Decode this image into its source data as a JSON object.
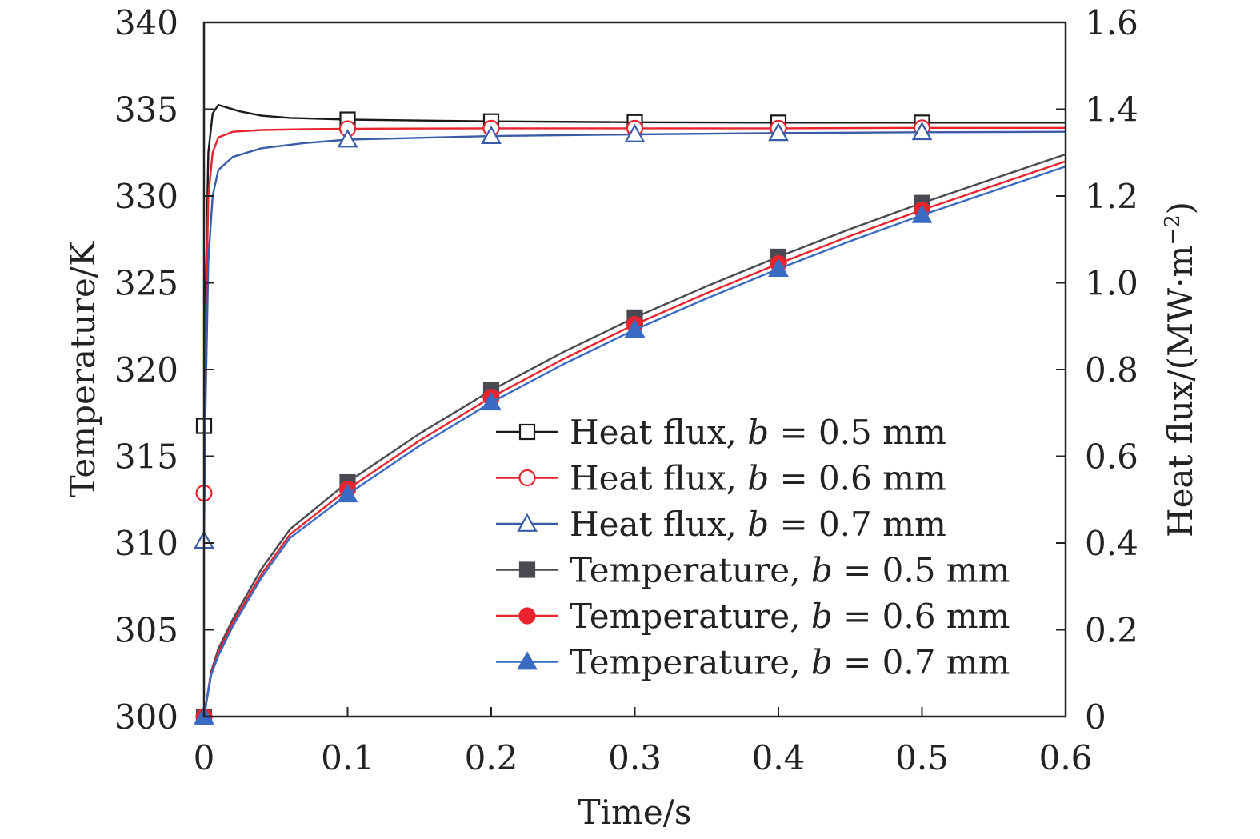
{
  "chart_data": {
    "type": "line",
    "title": "",
    "xlabel": "Time/s",
    "ylabel_left": "Temperature/K",
    "ylabel_right_main": "Heat flux/(MW·m",
    "ylabel_right_sup": "−2",
    "ylabel_right_close": ")",
    "xlim": [
      0,
      0.6
    ],
    "ylim_left": [
      300,
      340
    ],
    "ylim_right": [
      0,
      1.6
    ],
    "x_ticks": [
      0,
      0.1,
      0.2,
      0.3,
      0.4,
      0.5,
      0.6
    ],
    "x_tick_labels": [
      "0",
      "0.1",
      "0.2",
      "0.3",
      "0.4",
      "0.5",
      "0.6"
    ],
    "y_left_ticks": [
      300,
      305,
      310,
      315,
      320,
      325,
      330,
      335,
      340
    ],
    "y_left_tick_labels": [
      "300",
      "305",
      "310",
      "315",
      "320",
      "325",
      "330",
      "335",
      "340"
    ],
    "y_right_ticks": [
      0,
      0.2,
      0.4,
      0.6,
      0.8,
      1.0,
      1.2,
      1.4,
      1.6
    ],
    "y_right_tick_labels": [
      "0",
      "0.2",
      "0.4",
      "0.6",
      "0.8",
      "1.0",
      "1.2",
      "1.4",
      "1.6"
    ],
    "grid": false,
    "legend_position": "lower-right",
    "series": [
      {
        "name": "Heat flux, b = 0.5 mm",
        "legend_prefix": "Heat flux, ",
        "legend_var": "b",
        "legend_suffix": " = 0.5 mm",
        "axis": "right",
        "color": "#1a1a1a",
        "marker": "square-open",
        "x": [
          0,
          0.001,
          0.003,
          0.006,
          0.01,
          0.015,
          0.025,
          0.04,
          0.06,
          0.1,
          0.2,
          0.3,
          0.4,
          0.5,
          0.6
        ],
        "values": [
          0.67,
          0.95,
          1.3,
          1.39,
          1.41,
          1.405,
          1.395,
          1.385,
          1.38,
          1.376,
          1.372,
          1.37,
          1.369,
          1.369,
          1.369
        ],
        "marker_x": [
          0,
          0.1,
          0.2,
          0.3,
          0.4,
          0.5
        ]
      },
      {
        "name": "Heat flux, b = 0.6 mm",
        "legend_prefix": "Heat flux, ",
        "legend_var": "b",
        "legend_suffix": " = 0.6 mm",
        "axis": "right",
        "color": "#e8242e",
        "marker": "circle-open",
        "x": [
          0,
          0.001,
          0.003,
          0.006,
          0.01,
          0.02,
          0.04,
          0.07,
          0.1,
          0.2,
          0.3,
          0.4,
          0.5,
          0.6
        ],
        "values": [
          0.515,
          0.85,
          1.2,
          1.3,
          1.335,
          1.348,
          1.352,
          1.354,
          1.355,
          1.356,
          1.356,
          1.356,
          1.357,
          1.357
        ],
        "marker_x": [
          0,
          0.1,
          0.2,
          0.3,
          0.4,
          0.5
        ]
      },
      {
        "name": "Heat flux, b = 0.7 mm",
        "legend_prefix": "Heat flux, ",
        "legend_var": "b",
        "legend_suffix": " = 0.7 mm",
        "axis": "right",
        "color": "#3a5ca8",
        "marker": "triangle-open",
        "x": [
          0,
          0.001,
          0.003,
          0.006,
          0.01,
          0.02,
          0.04,
          0.07,
          0.1,
          0.2,
          0.3,
          0.4,
          0.5,
          0.6
        ],
        "values": [
          0.405,
          0.7,
          1.05,
          1.2,
          1.26,
          1.29,
          1.31,
          1.322,
          1.33,
          1.338,
          1.342,
          1.345,
          1.347,
          1.348
        ],
        "marker_x": [
          0,
          0.1,
          0.2,
          0.3,
          0.4,
          0.5
        ]
      },
      {
        "name": "Temperature, b = 0.5 mm",
        "legend_prefix": "Temperature, ",
        "legend_var": "b",
        "legend_suffix": " = 0.5 mm",
        "axis": "left",
        "color": "#4a4a52",
        "marker": "square-filled",
        "x": [
          0,
          0.005,
          0.01,
          0.02,
          0.04,
          0.06,
          0.1,
          0.15,
          0.2,
          0.25,
          0.3,
          0.35,
          0.4,
          0.45,
          0.5,
          0.55,
          0.6
        ],
        "values": [
          300,
          302.6,
          303.9,
          305.6,
          308.5,
          310.8,
          313.5,
          316.3,
          318.8,
          321.0,
          323.0,
          324.8,
          326.5,
          328.1,
          329.6,
          331.0,
          332.4
        ],
        "marker_x": [
          0,
          0.1,
          0.2,
          0.3,
          0.4,
          0.5
        ]
      },
      {
        "name": "Temperature, b = 0.6 mm",
        "legend_prefix": "Temperature, ",
        "legend_var": "b",
        "legend_suffix": " = 0.6 mm",
        "axis": "left",
        "color": "#e8242e",
        "marker": "circle-filled",
        "x": [
          0,
          0.005,
          0.01,
          0.02,
          0.04,
          0.06,
          0.1,
          0.15,
          0.2,
          0.25,
          0.3,
          0.35,
          0.4,
          0.45,
          0.5,
          0.55,
          0.6
        ],
        "values": [
          300,
          302.5,
          303.7,
          305.4,
          308.2,
          310.5,
          313.1,
          315.9,
          318.4,
          320.6,
          322.6,
          324.4,
          326.1,
          327.7,
          329.2,
          330.6,
          332.0
        ],
        "marker_x": [
          0,
          0.1,
          0.2,
          0.3,
          0.4,
          0.5
        ]
      },
      {
        "name": "Temperature, b = 0.7 mm",
        "legend_prefix": "Temperature, ",
        "legend_var": "b",
        "legend_suffix": " = 0.7 mm",
        "axis": "left",
        "color": "#3a6bc4",
        "marker": "triangle-filled",
        "x": [
          0,
          0.005,
          0.01,
          0.02,
          0.04,
          0.06,
          0.1,
          0.15,
          0.2,
          0.25,
          0.3,
          0.35,
          0.4,
          0.45,
          0.5,
          0.55,
          0.6
        ],
        "values": [
          300,
          302.4,
          303.5,
          305.2,
          308.0,
          310.3,
          312.8,
          315.6,
          318.1,
          320.3,
          322.3,
          324.1,
          325.8,
          327.4,
          328.9,
          330.3,
          331.7
        ],
        "marker_x": [
          0,
          0.1,
          0.2,
          0.3,
          0.4,
          0.5
        ]
      }
    ]
  }
}
